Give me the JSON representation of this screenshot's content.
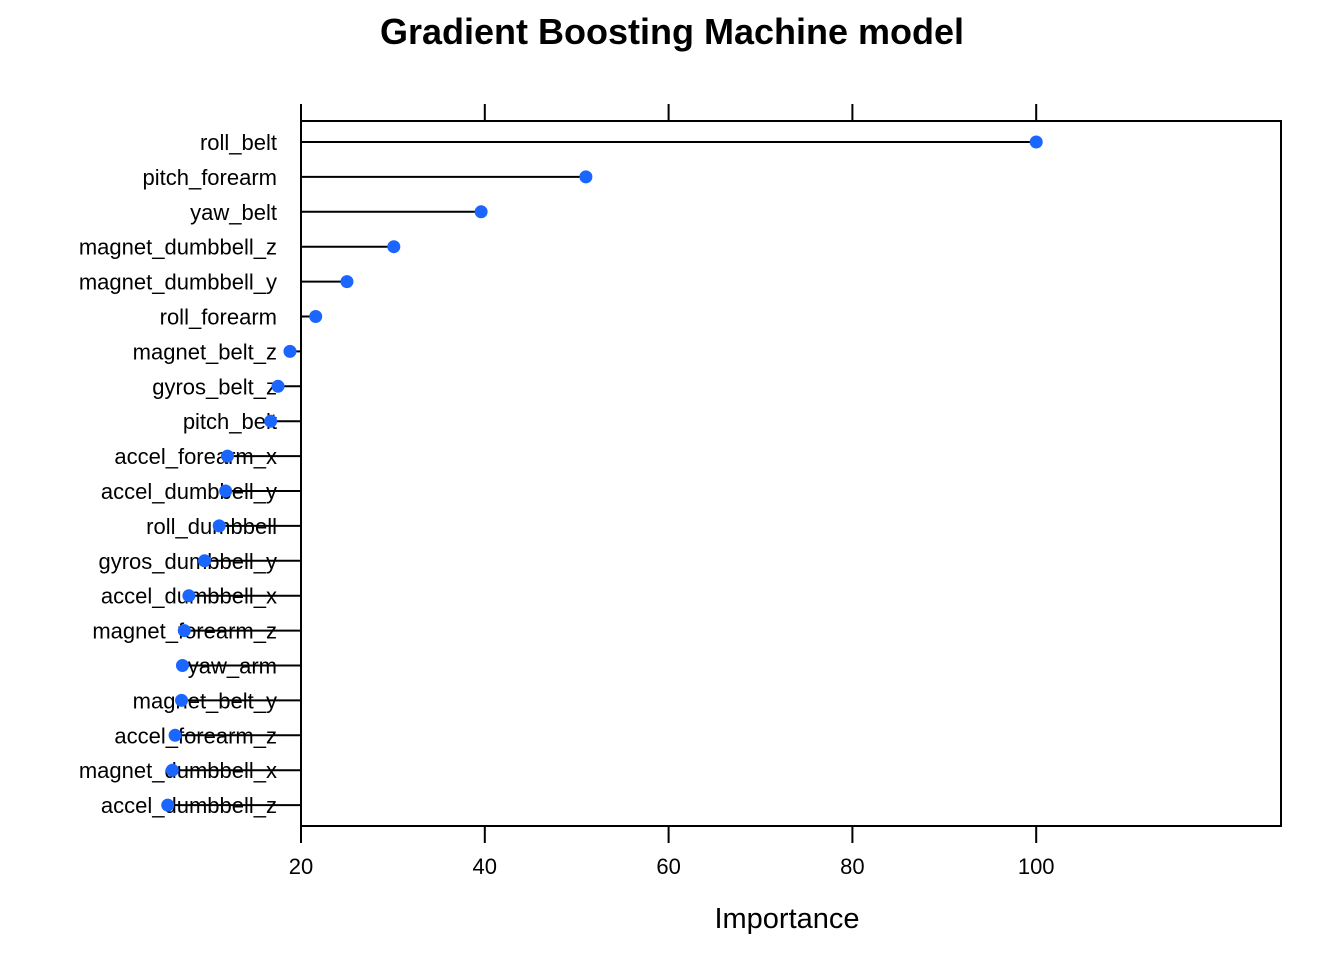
{
  "chart_data": {
    "type": "dotplot",
    "title": "Gradient Boosting Machine model",
    "xlabel": "Importance",
    "ylabel": "",
    "xlim": [
      0,
      100
    ],
    "x_ticks": [
      20,
      40,
      60,
      80,
      100
    ],
    "grid": false,
    "point_color": "#1A66FF",
    "line_color": "#000000",
    "categories": [
      "roll_belt",
      "pitch_forearm",
      "yaw_belt",
      "magnet_dumbbell_z",
      "magnet_dumbbell_y",
      "roll_forearm",
      "magnet_belt_z",
      "gyros_belt_z",
      "pitch_belt",
      "accel_forearm_x",
      "accel_dumbbell_y",
      "roll_dumbbell",
      "gyros_dumbbell_y",
      "accel_dumbbell_x",
      "magnet_forearm_z",
      "yaw_arm",
      "magnet_belt_y",
      "accel_forearm_z",
      "magnet_dumbbell_x",
      "accel_dumbbell_z"
    ],
    "values": [
      100.0,
      51.0,
      39.6,
      30.1,
      25.0,
      21.6,
      18.8,
      17.5,
      16.7,
      12.0,
      11.8,
      11.1,
      9.5,
      7.8,
      7.3,
      7.1,
      7.0,
      6.3,
      6.0,
      5.5
    ]
  }
}
